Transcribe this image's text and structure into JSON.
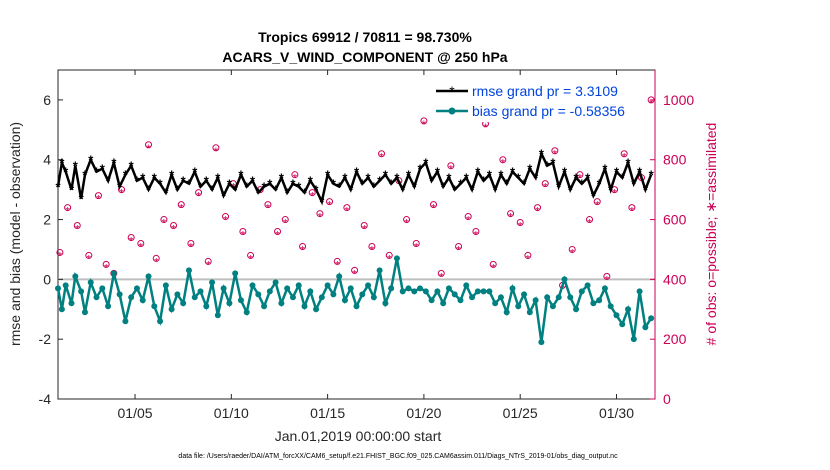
{
  "chart_data": {
    "type": "line",
    "title": "Tropics 69912 / 70811 = 98.730%",
    "subtitle": "ACARS_V_WIND_COMPONENT @ 250 hPa",
    "xlabel": "Jan.01,2019 00:00:00 start",
    "ylabel_left": "rmse and bias (model - observation)",
    "ylabel_right": "# of obs: o=possible; ∗=assimilated",
    "footnote": "data file: /Users/raeder/DAI/ATM_forcXX/CAM6_setup/f.e21.FHIST_BGC.f09_025.CAM6assim.011/Diags_NTrS_2019-01/obs_diag_output.nc",
    "x_range": [
      1.0,
      32.0
    ],
    "ylim_left": [
      -4,
      7
    ],
    "ylim_right": [
      0,
      1100
    ],
    "yticks_left": [
      "-4",
      "-2",
      "0",
      "2",
      "4",
      "6"
    ],
    "yticks_right": [
      "0",
      "200",
      "400",
      "600",
      "800",
      "1000"
    ],
    "xticks": [
      {
        "day": 5,
        "label": "01/05"
      },
      {
        "day": 10,
        "label": "01/10"
      },
      {
        "day": 15,
        "label": "01/15"
      },
      {
        "day": 20,
        "label": "01/20"
      },
      {
        "day": 25,
        "label": "01/25"
      },
      {
        "day": 30,
        "label": "01/30"
      }
    ],
    "legend": {
      "position": "top-right"
    },
    "series": [
      {
        "name": "rmse grand pr = 3.3109",
        "axis": "left",
        "color": "#000000",
        "marker": "asterisk",
        "x": [
          1.0,
          1.2,
          1.4,
          1.7,
          1.9,
          2.2,
          2.4,
          2.7,
          3.0,
          3.3,
          3.6,
          3.9,
          4.2,
          4.5,
          4.8,
          5.1,
          5.4,
          5.7,
          6.0,
          6.3,
          6.6,
          6.9,
          7.2,
          7.5,
          7.8,
          8.1,
          8.4,
          8.7,
          9.0,
          9.3,
          9.6,
          9.9,
          10.2,
          10.5,
          10.8,
          11.1,
          11.4,
          11.7,
          12.0,
          12.3,
          12.6,
          12.9,
          13.2,
          13.5,
          13.8,
          14.1,
          14.4,
          14.7,
          15.0,
          15.3,
          15.6,
          15.9,
          16.2,
          16.5,
          16.8,
          17.1,
          17.4,
          17.7,
          18.0,
          18.3,
          18.6,
          18.9,
          19.2,
          19.5,
          19.8,
          20.1,
          20.4,
          20.7,
          21.0,
          21.3,
          21.6,
          21.9,
          22.2,
          22.5,
          22.8,
          23.1,
          23.4,
          23.7,
          24.0,
          24.3,
          24.6,
          24.9,
          25.2,
          25.5,
          25.8,
          26.1,
          26.4,
          26.7,
          27.0,
          27.3,
          27.6,
          27.9,
          28.2,
          28.5,
          28.8,
          29.1,
          29.4,
          29.7,
          30.0,
          30.3,
          30.6,
          30.9,
          31.2,
          31.5,
          31.8
        ],
        "values": [
          3.1,
          3.9,
          3.6,
          3.0,
          3.8,
          2.7,
          3.5,
          4.0,
          3.6,
          3.7,
          3.3,
          3.9,
          3.1,
          3.5,
          3.8,
          3.3,
          3.4,
          3.0,
          3.4,
          3.2,
          2.9,
          3.5,
          3.0,
          3.3,
          3.2,
          3.6,
          3.1,
          3.3,
          3.0,
          3.4,
          2.8,
          3.2,
          3.0,
          3.5,
          3.1,
          3.3,
          2.9,
          3.1,
          3.2,
          3.0,
          3.4,
          2.9,
          3.2,
          3.1,
          2.9,
          3.3,
          3.0,
          2.6,
          3.5,
          3.2,
          3.1,
          3.4,
          3.0,
          3.6,
          3.2,
          3.4,
          3.1,
          3.3,
          3.5,
          3.2,
          3.4,
          3.0,
          3.5,
          3.1,
          3.7,
          3.9,
          3.3,
          3.6,
          3.1,
          3.4,
          3.0,
          3.2,
          3.4,
          3.0,
          3.6,
          3.3,
          3.5,
          3.0,
          3.5,
          3.2,
          3.6,
          3.4,
          3.2,
          3.7,
          3.4,
          4.2,
          3.8,
          3.9,
          3.1,
          3.6,
          3.0,
          3.4,
          3.2,
          3.4,
          2.8,
          3.2,
          3.7,
          3.0,
          3.6,
          3.4,
          3.9,
          3.2,
          3.6,
          3.0,
          3.5
        ]
      },
      {
        "name": "bias grand pr = -0.58356",
        "axis": "left",
        "color": "#008080",
        "marker": "dot",
        "x": [
          1.0,
          1.2,
          1.4,
          1.7,
          1.9,
          2.2,
          2.4,
          2.7,
          3.0,
          3.3,
          3.6,
          3.9,
          4.2,
          4.5,
          4.8,
          5.1,
          5.4,
          5.7,
          6.0,
          6.3,
          6.6,
          6.9,
          7.2,
          7.5,
          7.8,
          8.1,
          8.4,
          8.7,
          9.0,
          9.3,
          9.6,
          9.9,
          10.2,
          10.5,
          10.8,
          11.1,
          11.4,
          11.7,
          12.0,
          12.3,
          12.6,
          12.9,
          13.2,
          13.5,
          13.8,
          14.1,
          14.4,
          14.7,
          15.0,
          15.3,
          15.6,
          15.9,
          16.2,
          16.5,
          16.8,
          17.1,
          17.4,
          17.7,
          18.0,
          18.3,
          18.6,
          18.9,
          19.2,
          19.5,
          19.8,
          20.1,
          20.4,
          20.7,
          21.0,
          21.3,
          21.6,
          21.9,
          22.2,
          22.5,
          22.8,
          23.1,
          23.4,
          23.7,
          24.0,
          24.3,
          24.6,
          24.9,
          25.2,
          25.5,
          25.8,
          26.1,
          26.4,
          26.7,
          27.0,
          27.3,
          27.6,
          27.9,
          28.2,
          28.5,
          28.8,
          29.1,
          29.4,
          29.7,
          30.0,
          30.3,
          30.6,
          30.9,
          31.2,
          31.5,
          31.8
        ],
        "values": [
          -0.3,
          -1.0,
          -0.2,
          -0.8,
          0.1,
          -0.4,
          -1.1,
          -0.1,
          -0.6,
          -0.3,
          -0.9,
          0.2,
          -0.5,
          -1.4,
          -0.6,
          -0.3,
          -0.7,
          0.1,
          -0.9,
          -1.4,
          -0.2,
          -1.0,
          -0.5,
          -0.8,
          0.3,
          -0.6,
          -0.4,
          -0.9,
          -0.1,
          -1.2,
          -0.3,
          -0.8,
          0.2,
          -0.7,
          -1.1,
          -0.2,
          -0.5,
          -0.9,
          -0.4,
          -0.1,
          -0.8,
          -0.3,
          -0.6,
          -0.2,
          -0.9,
          -0.4,
          -1.0,
          -0.6,
          -0.2,
          -0.5,
          0.1,
          -0.7,
          -0.3,
          -0.9,
          -0.5,
          -0.2,
          -0.6,
          0.3,
          -0.8,
          -0.3,
          0.7,
          -0.4,
          -0.3,
          -0.4,
          -0.3,
          -0.4,
          -0.7,
          -0.4,
          -0.8,
          -0.3,
          -0.5,
          -0.7,
          -0.2,
          -0.6,
          -0.4,
          -0.4,
          -0.4,
          -0.8,
          -0.6,
          -1.1,
          -0.3,
          -0.9,
          -0.5,
          -1.1,
          -0.7,
          -2.1,
          -0.6,
          -0.9,
          -0.6,
          0.0,
          -0.6,
          -1.0,
          -0.4,
          -0.2,
          -0.8,
          -0.7,
          -0.3,
          -0.9,
          -1.2,
          -1.5,
          -1.0,
          -2.0,
          -0.4,
          -1.6,
          -1.3
        ]
      }
    ],
    "obs_series": [
      {
        "name": "possible",
        "axis": "right",
        "color": "#cc0055",
        "marker": "open-circle",
        "x": [
          1.1,
          1.5,
          2.0,
          2.6,
          3.1,
          3.5,
          3.9,
          4.3,
          4.8,
          5.3,
          5.7,
          6.1,
          6.5,
          7.0,
          7.4,
          7.9,
          8.3,
          8.8,
          9.2,
          9.7,
          10.1,
          10.6,
          11.0,
          11.5,
          11.9,
          12.4,
          12.8,
          13.3,
          13.7,
          14.2,
          14.6,
          15.1,
          15.5,
          16.0,
          16.4,
          16.9,
          17.3,
          17.8,
          18.2,
          18.7,
          19.1,
          19.6,
          20.0,
          20.5,
          20.9,
          21.4,
          21.8,
          22.3,
          22.7,
          23.2,
          23.6,
          24.1,
          24.5,
          25.0,
          25.4,
          25.9,
          26.3,
          26.8,
          27.2,
          27.7,
          28.1,
          28.6,
          29.0,
          29.5,
          29.9,
          30.4,
          30.8,
          31.3,
          31.8
        ],
        "values": [
          490,
          640,
          580,
          480,
          680,
          450,
          420,
          700,
          540,
          520,
          850,
          470,
          600,
          580,
          650,
          520,
          690,
          460,
          840,
          610,
          720,
          560,
          480,
          700,
          650,
          560,
          600,
          750,
          510,
          690,
          620,
          660,
          460,
          640,
          430,
          580,
          510,
          820,
          480,
          730,
          600,
          520,
          930,
          650,
          420,
          780,
          510,
          610,
          560,
          920,
          450,
          800,
          620,
          590,
          480,
          640,
          720,
          830,
          380,
          500,
          750,
          600,
          660,
          410,
          700,
          820,
          640,
          740,
          1000
        ]
      },
      {
        "name": "assimilated",
        "axis": "right",
        "color": "#cc0055",
        "marker": "asterisk",
        "x": [
          1.1,
          1.5,
          2.0,
          2.6,
          3.1,
          3.5,
          3.9,
          4.3,
          4.8,
          5.3,
          5.7,
          6.1,
          6.5,
          7.0,
          7.4,
          7.9,
          8.3,
          8.8,
          9.2,
          9.7,
          10.1,
          10.6,
          11.0,
          11.5,
          11.9,
          12.4,
          12.8,
          13.3,
          13.7,
          14.2,
          14.6,
          15.1,
          15.5,
          16.0,
          16.4,
          16.9,
          17.3,
          17.8,
          18.2,
          18.7,
          19.1,
          19.6,
          20.0,
          20.5,
          20.9,
          21.4,
          21.8,
          22.3,
          22.7,
          23.2,
          23.6,
          24.1,
          24.5,
          25.0,
          25.4,
          25.9,
          26.3,
          26.8,
          27.2,
          27.7,
          28.1,
          28.6,
          29.0,
          29.5,
          29.9,
          30.4,
          30.8,
          31.3,
          31.8
        ],
        "values": [
          480,
          630,
          570,
          470,
          670,
          440,
          410,
          690,
          530,
          510,
          840,
          460,
          590,
          570,
          640,
          510,
          680,
          450,
          830,
          600,
          710,
          550,
          470,
          690,
          640,
          550,
          590,
          740,
          500,
          680,
          610,
          650,
          450,
          630,
          420,
          570,
          500,
          810,
          470,
          720,
          590,
          510,
          920,
          640,
          410,
          770,
          500,
          600,
          550,
          910,
          440,
          790,
          610,
          580,
          470,
          630,
          710,
          820,
          370,
          490,
          740,
          590,
          650,
          400,
          690,
          810,
          630,
          730,
          990
        ]
      }
    ]
  }
}
